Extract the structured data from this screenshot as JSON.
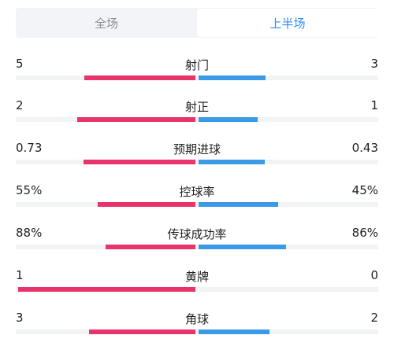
{
  "tabs": {
    "full_match": "全场",
    "first_half": "上半场",
    "active": "first_half"
  },
  "colors": {
    "home": "#e8336b",
    "away": "#3a9ae8",
    "accent": "#2f8ff0"
  },
  "stats": [
    {
      "label": "射门",
      "home": "5",
      "away": "3",
      "home_share": 0.625,
      "away_share": 0.375
    },
    {
      "label": "射正",
      "home": "2",
      "away": "1",
      "home_share": 0.667,
      "away_share": 0.333
    },
    {
      "label": "预期进球",
      "home": "0.73",
      "away": "0.43",
      "home_share": 0.629,
      "away_share": 0.371
    },
    {
      "label": "控球率",
      "home": "55%",
      "away": "45%",
      "home_share": 0.55,
      "away_share": 0.45
    },
    {
      "label": "传球成功率",
      "home": "88%",
      "away": "86%",
      "home_share": 0.506,
      "away_share": 0.494
    },
    {
      "label": "黄牌",
      "home": "1",
      "away": "0",
      "home_share": 1.0,
      "away_share": 0.0
    },
    {
      "label": "角球",
      "home": "3",
      "away": "2",
      "home_share": 0.6,
      "away_share": 0.4
    }
  ]
}
